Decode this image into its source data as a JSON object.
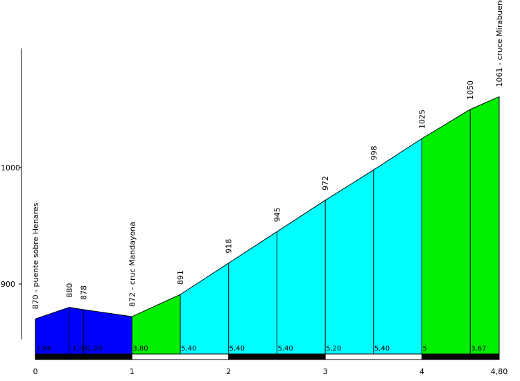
{
  "chart_data": {
    "type": "area",
    "title": "",
    "xlabel": "",
    "ylabel": "",
    "x_ticks": [
      {
        "value": 0,
        "label": "0"
      },
      {
        "value": 1,
        "label": "1"
      },
      {
        "value": 2,
        "label": "2"
      },
      {
        "value": 3,
        "label": "3"
      },
      {
        "value": 4,
        "label": "4"
      },
      {
        "value": 4.8,
        "label": "4,80"
      }
    ],
    "y_ticks": [
      {
        "value": 900,
        "label": "900"
      },
      {
        "value": 1000,
        "label": "1000"
      }
    ],
    "xlim": [
      0,
      4.8
    ],
    "ylim": [
      840,
      1102
    ],
    "points": [
      {
        "x": 0.0,
        "y": 870,
        "label": "870 - puente sobre Henares"
      },
      {
        "x": 0.35,
        "y": 880,
        "label": "880"
      },
      {
        "x": 0.5,
        "y": 878,
        "label": "878"
      },
      {
        "x": 1.0,
        "y": 872,
        "label": "872 - cruc Mandayona"
      },
      {
        "x": 1.5,
        "y": 891,
        "label": "891"
      },
      {
        "x": 2.0,
        "y": 918,
        "label": "918"
      },
      {
        "x": 2.5,
        "y": 945,
        "label": "945"
      },
      {
        "x": 3.0,
        "y": 972,
        "label": "972"
      },
      {
        "x": 3.5,
        "y": 998,
        "label": "998"
      },
      {
        "x": 4.0,
        "y": 1025,
        "label": "1025"
      },
      {
        "x": 4.5,
        "y": 1050,
        "label": "1050"
      },
      {
        "x": 4.8,
        "y": 1061,
        "label": "1061 - cruce Mirabueno"
      }
    ],
    "segments": [
      {
        "from": 0.0,
        "to": 0.35,
        "gradient": "2,86",
        "color": "#0000ff"
      },
      {
        "from": 0.35,
        "to": 0.5,
        "gradient": "-1,33",
        "color": "#0000ff"
      },
      {
        "from": 0.5,
        "to": 1.0,
        "gradient": "-1,20",
        "color": "#0000ff"
      },
      {
        "from": 1.0,
        "to": 1.5,
        "gradient": "3,80",
        "color": "#00ee00"
      },
      {
        "from": 1.5,
        "to": 2.0,
        "gradient": "5,40",
        "color": "#00ffff"
      },
      {
        "from": 2.0,
        "to": 2.5,
        "gradient": "5,40",
        "color": "#00ffff"
      },
      {
        "from": 2.5,
        "to": 3.0,
        "gradient": "5,40",
        "color": "#00ffff"
      },
      {
        "from": 3.0,
        "to": 3.5,
        "gradient": "5,20",
        "color": "#00ffff"
      },
      {
        "from": 3.5,
        "to": 4.0,
        "gradient": "5,40",
        "color": "#00ffff"
      },
      {
        "from": 4.0,
        "to": 4.5,
        "gradient": "5",
        "color": "#00ee00"
      },
      {
        "from": 4.5,
        "to": 4.8,
        "gradient": "3,67",
        "color": "#00ee00"
      }
    ],
    "km_bar": [
      {
        "from": 0,
        "to": 1,
        "color": "#000000"
      },
      {
        "from": 1,
        "to": 2,
        "color": "#ffffff"
      },
      {
        "from": 2,
        "to": 3,
        "color": "#000000"
      },
      {
        "from": 3,
        "to": 4,
        "color": "#ffffff"
      },
      {
        "from": 4,
        "to": 4.8,
        "color": "#000000"
      }
    ],
    "grid": false
  }
}
